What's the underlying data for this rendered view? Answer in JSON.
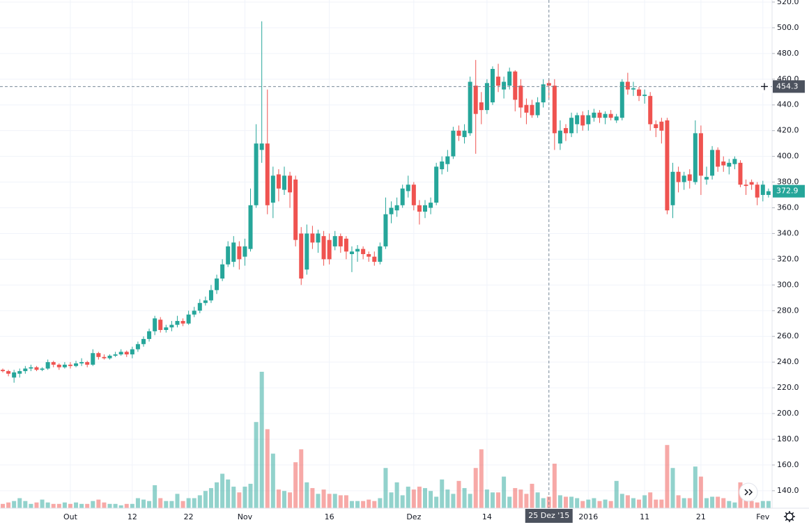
{
  "chart_data": {
    "type": "candlestick",
    "up_color": "#26a69a",
    "down_color": "#ef5350",
    "grid": true,
    "categories": [
      null,
      null,
      null,
      null,
      null,
      null,
      null,
      null,
      null,
      null,
      null,
      null,
      "Out",
      null,
      null,
      null,
      null,
      null,
      null,
      null,
      null,
      null,
      null,
      "12",
      null,
      null,
      null,
      null,
      null,
      null,
      null,
      null,
      null,
      "22",
      null,
      null,
      null,
      null,
      null,
      null,
      null,
      null,
      null,
      "Nov",
      null,
      null,
      null,
      null,
      null,
      null,
      null,
      null,
      null,
      null,
      null,
      null,
      null,
      null,
      "16",
      null,
      null,
      null,
      null,
      null,
      null,
      null,
      null,
      null,
      null,
      null,
      null,
      null,
      null,
      "Dez",
      null,
      null,
      null,
      null,
      null,
      null,
      null,
      null,
      null,
      null,
      null,
      null,
      "14",
      null,
      null,
      null,
      null,
      null,
      null,
      null,
      null,
      null,
      null,
      "25 Dez '15",
      null,
      null,
      null,
      null,
      null,
      null,
      "2016",
      null,
      null,
      null,
      null,
      null,
      null,
      null,
      null,
      null,
      "11",
      null,
      null,
      null,
      null,
      null,
      null,
      null,
      null,
      null,
      "21",
      null,
      null,
      null,
      null,
      null,
      null,
      null,
      null,
      null,
      null,
      "Fev",
      null
    ],
    "open": [
      234,
      233,
      228,
      231,
      233,
      235,
      236,
      234,
      235,
      240,
      238,
      236,
      238,
      237,
      239,
      240,
      238,
      247,
      244,
      243,
      245,
      246,
      248,
      246,
      250,
      254,
      258,
      264,
      273,
      265,
      267,
      269,
      272,
      270,
      277,
      280,
      286,
      288,
      296,
      305,
      316,
      318,
      330,
      322,
      328,
      362,
      405,
      410,
      364,
      386,
      374,
      385,
      382,
      340,
      312,
      340,
      333,
      338,
      335,
      330,
      338,
      336,
      324,
      326,
      328,
      324,
      322,
      318,
      330,
      355,
      358,
      362,
      373,
      378,
      362,
      357,
      360,
      364,
      390,
      394,
      400,
      420,
      415,
      418,
      455,
      442,
      436,
      442,
      462,
      452,
      455,
      466,
      455,
      440,
      440,
      432,
      442,
      457,
      455,
      410,
      422,
      418,
      425,
      432,
      425,
      430,
      434,
      430,
      433,
      428,
      430,
      458,
      452,
      452,
      447,
      447,
      425,
      427,
      428,
      362,
      388,
      380,
      386,
      380,
      418,
      382,
      385,
      405,
      396,
      392,
      394,
      395,
      378,
      380,
      378,
      370,
      370
    ],
    "high": [
      235,
      234,
      234,
      235,
      237,
      238,
      237,
      236,
      242,
      241,
      239,
      240,
      240,
      241,
      243,
      241,
      250,
      248,
      246,
      246,
      248,
      250,
      249,
      252,
      256,
      260,
      266,
      276,
      275,
      269,
      272,
      276,
      274,
      280,
      283,
      289,
      291,
      300,
      308,
      320,
      334,
      338,
      334,
      336,
      375,
      425,
      505,
      452,
      392,
      390,
      392,
      388,
      385,
      345,
      347,
      346,
      343,
      342,
      340,
      342,
      340,
      338,
      330,
      331,
      330,
      326,
      326,
      333,
      368,
      365,
      368,
      378,
      385,
      380,
      366,
      366,
      368,
      395,
      400,
      405,
      423,
      424,
      425,
      462,
      475,
      450,
      460,
      470,
      472,
      462,
      469,
      467,
      460,
      445,
      444,
      446,
      460,
      460,
      460,
      428,
      425,
      434,
      434,
      435,
      436,
      437,
      436,
      435,
      436,
      433,
      460,
      465,
      458,
      454,
      452,
      450,
      428,
      430,
      430,
      395,
      392,
      388,
      390,
      428,
      424,
      392,
      408,
      407,
      400,
      398,
      400,
      397,
      382,
      382,
      380,
      381,
      375
    ],
    "low": [
      232,
      229,
      224,
      228,
      231,
      233,
      233,
      233,
      234,
      236,
      234,
      235,
      235,
      236,
      237,
      236,
      237,
      242,
      242,
      242,
      244,
      245,
      244,
      243,
      248,
      252,
      256,
      261,
      263,
      263,
      264,
      267,
      268,
      269,
      275,
      278,
      284,
      286,
      293,
      303,
      314,
      314,
      312,
      315,
      326,
      360,
      395,
      355,
      352,
      365,
      370,
      360,
      330,
      300,
      308,
      328,
      325,
      315,
      316,
      327,
      325,
      320,
      310,
      318,
      320,
      318,
      315,
      316,
      328,
      348,
      353,
      360,
      368,
      358,
      347,
      352,
      355,
      362,
      386,
      388,
      398,
      412,
      410,
      416,
      402,
      425,
      433,
      440,
      450,
      445,
      452,
      435,
      430,
      425,
      430,
      430,
      438,
      445,
      405,
      405,
      412,
      415,
      418,
      420,
      420,
      427,
      426,
      425,
      428,
      426,
      428,
      448,
      447,
      443,
      441,
      420,
      415,
      410,
      355,
      352,
      372,
      374,
      375,
      378,
      370,
      378,
      382,
      388,
      388,
      386,
      390,
      376,
      370,
      374,
      362,
      365,
      368
    ],
    "close": [
      233,
      231,
      232,
      233,
      235,
      236,
      234,
      235,
      240,
      238,
      236,
      238,
      237,
      239,
      240,
      238,
      247,
      244,
      243,
      245,
      246,
      248,
      246,
      250,
      254,
      258,
      264,
      274,
      265,
      267,
      269,
      272,
      270,
      277,
      280,
      286,
      288,
      296,
      305,
      316,
      330,
      333,
      320,
      330,
      362,
      410,
      410,
      362,
      385,
      375,
      385,
      372,
      335,
      305,
      340,
      333,
      340,
      320,
      320,
      338,
      330,
      326,
      326,
      328,
      324,
      322,
      318,
      330,
      355,
      360,
      362,
      375,
      378,
      362,
      357,
      362,
      364,
      392,
      396,
      400,
      420,
      416,
      420,
      458,
      433,
      436,
      457,
      468,
      455,
      458,
      466,
      444,
      438,
      434,
      432,
      442,
      456,
      455,
      418,
      420,
      418,
      430,
      432,
      424,
      432,
      434,
      430,
      433,
      430,
      431,
      458,
      452,
      453,
      447,
      448,
      425,
      422,
      420,
      358,
      388,
      380,
      385,
      381,
      418,
      385,
      384,
      405,
      392,
      393,
      395,
      398,
      378,
      377,
      378,
      368,
      378,
      372.9
    ],
    "volume": [
      6,
      8,
      10,
      14,
      10,
      6,
      8,
      12,
      8,
      6,
      6,
      8,
      6,
      8,
      6,
      6,
      10,
      12,
      8,
      6,
      6,
      4,
      6,
      6,
      14,
      12,
      10,
      32,
      14,
      10,
      10,
      20,
      10,
      14,
      14,
      18,
      24,
      28,
      36,
      48,
      40,
      30,
      22,
      30,
      34,
      120,
      190,
      110,
      76,
      26,
      24,
      22,
      64,
      82,
      36,
      28,
      20,
      26,
      20,
      20,
      18,
      18,
      10,
      10,
      10,
      12,
      10,
      14,
      56,
      22,
      36,
      18,
      30,
      26,
      30,
      28,
      24,
      16,
      40,
      26,
      20,
      38,
      28,
      20,
      56,
      82,
      26,
      22,
      22,
      44,
      16,
      28,
      26,
      20,
      34,
      22,
      14,
      16,
      62,
      18,
      16,
      16,
      14,
      10,
      12,
      14,
      10,
      12,
      10,
      38,
      20,
      18,
      14,
      12,
      18,
      22,
      12,
      12,
      88,
      56,
      18,
      14,
      14,
      58,
      44,
      14,
      16,
      16,
      14,
      10,
      8,
      36,
      12,
      10,
      8,
      10,
      10
    ],
    "ylim": [
      126.4,
      521.6
    ],
    "yticks": [
      {
        "value": 140,
        "label": "140.0"
      },
      {
        "value": 160,
        "label": "160.0"
      },
      {
        "value": 180,
        "label": "180.0"
      },
      {
        "value": 200,
        "label": "200.0"
      },
      {
        "value": 220,
        "label": "220.0"
      },
      {
        "value": 240,
        "label": "240.0"
      },
      {
        "value": 260,
        "label": "260.0"
      },
      {
        "value": 280,
        "label": "280.0"
      },
      {
        "value": 300,
        "label": "300.0"
      },
      {
        "value": 320,
        "label": "320.0"
      },
      {
        "value": 340,
        "label": "340.0"
      },
      {
        "value": 360,
        "label": "360.0"
      },
      {
        "value": 380,
        "label": "380.0"
      },
      {
        "value": 400,
        "label": "400.0"
      },
      {
        "value": 420,
        "label": "420.0"
      },
      {
        "value": 440,
        "label": "440.0"
      },
      {
        "value": 460,
        "label": "460.0"
      },
      {
        "value": 480,
        "label": "480.0"
      },
      {
        "value": 500,
        "label": "500.0"
      },
      {
        "value": 520,
        "label": "520.0"
      }
    ],
    "crosshair": {
      "category": 97,
      "price": 454.3
    },
    "last_price": 372.9
  }
}
